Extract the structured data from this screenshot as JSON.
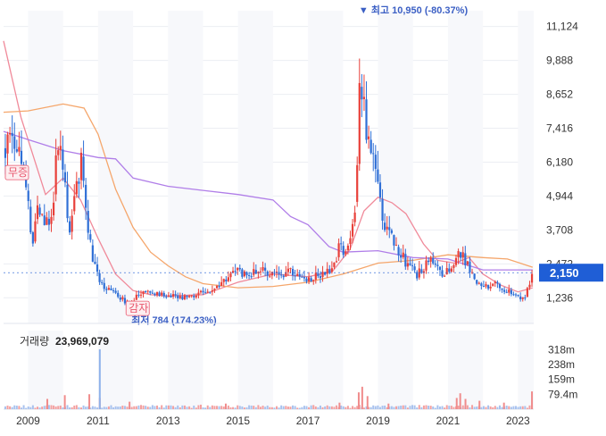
{
  "chart_data": [
    {
      "type": "candlestick",
      "title": "",
      "x_ticks": [
        "2009",
        "2011",
        "2013",
        "2015",
        "2017",
        "2019",
        "2021",
        "2023"
      ],
      "x_range": [
        2008.3,
        2023.45
      ],
      "y_ticks": [
        "11,124",
        "9,888",
        "8,652",
        "7,416",
        "6,180",
        "4,944",
        "3,708",
        "2,472",
        "1,236"
      ],
      "ylim": [
        300,
        11700
      ],
      "current_price": 2150,
      "current_price_label": "2,150",
      "high_marker": {
        "text": "▼ 최고 10,950 (-80.37%)",
        "x": 2018.55,
        "value": 10950
      },
      "low_marker": {
        "text": "최저 784 (174.23%)",
        "x": 2011.75,
        "value": 784
      },
      "event_tags": [
        {
          "text": "무증",
          "x": 2008.35,
          "value": 5800,
          "color": "#e8556d"
        },
        {
          "text": "감자",
          "x": 2011.8,
          "value": 850,
          "color": "#e8556d"
        }
      ],
      "colors": {
        "up": "#e8403a",
        "down": "#2f6fd6",
        "current_price_box": "#1f5ed6"
      },
      "price_path": [
        [
          2008.35,
          6700
        ],
        [
          2008.55,
          7300
        ],
        [
          2008.75,
          6500
        ],
        [
          2008.95,
          5200
        ],
        [
          2009.1,
          3200
        ],
        [
          2009.3,
          4600
        ],
        [
          2009.5,
          3900
        ],
        [
          2009.7,
          4500
        ],
        [
          2009.85,
          6900
        ],
        [
          2010.0,
          6000
        ],
        [
          2010.2,
          3500
        ],
        [
          2010.35,
          5000
        ],
        [
          2010.55,
          6500
        ],
        [
          2010.7,
          3900
        ],
        [
          2010.85,
          2700
        ],
        [
          2011.0,
          2000
        ],
        [
          2011.2,
          1600
        ],
        [
          2011.4,
          1450
        ],
        [
          2011.6,
          1300
        ],
        [
          2011.8,
          1050
        ],
        [
          2012.0,
          1150
        ],
        [
          2012.2,
          1400
        ],
        [
          2012.5,
          1500
        ],
        [
          2012.8,
          1350
        ],
        [
          2013.0,
          1300
        ],
        [
          2013.3,
          1250
        ],
        [
          2013.6,
          1300
        ],
        [
          2013.8,
          1350
        ],
        [
          2014.0,
          1400
        ],
        [
          2014.3,
          1500
        ],
        [
          2014.6,
          1800
        ],
        [
          2014.8,
          2100
        ],
        [
          2015.0,
          2200
        ],
        [
          2015.3,
          2100
        ],
        [
          2015.6,
          2300
        ],
        [
          2015.9,
          2050
        ],
        [
          2016.2,
          2100
        ],
        [
          2016.5,
          2250
        ],
        [
          2016.8,
          2000
        ],
        [
          2017.0,
          1950
        ],
        [
          2017.3,
          2050
        ],
        [
          2017.6,
          2200
        ],
        [
          2017.8,
          2700
        ],
        [
          2017.95,
          3300
        ],
        [
          2018.05,
          2600
        ],
        [
          2018.2,
          3400
        ],
        [
          2018.35,
          4300
        ],
        [
          2018.45,
          8200
        ],
        [
          2018.55,
          9300
        ],
        [
          2018.7,
          7000
        ],
        [
          2018.85,
          6200
        ],
        [
          2019.0,
          5200
        ],
        [
          2019.15,
          4000
        ],
        [
          2019.3,
          3600
        ],
        [
          2019.5,
          3100
        ],
        [
          2019.7,
          2700
        ],
        [
          2019.9,
          2400
        ],
        [
          2020.1,
          2000
        ],
        [
          2020.3,
          2350
        ],
        [
          2020.5,
          2800
        ],
        [
          2020.7,
          2300
        ],
        [
          2020.9,
          2100
        ],
        [
          2021.1,
          2500
        ],
        [
          2021.3,
          2900
        ],
        [
          2021.5,
          2600
        ],
        [
          2021.6,
          2300
        ],
        [
          2021.75,
          1900
        ],
        [
          2021.9,
          1700
        ],
        [
          2022.1,
          1650
        ],
        [
          2022.3,
          1750
        ],
        [
          2022.5,
          1600
        ],
        [
          2022.7,
          1450
        ],
        [
          2022.9,
          1350
        ],
        [
          2023.05,
          1200
        ],
        [
          2023.2,
          1300
        ],
        [
          2023.3,
          1700
        ],
        [
          2023.4,
          2150
        ]
      ],
      "ma_series": [
        {
          "color": "#f08a9a",
          "points": [
            [
              2008.3,
              10600
            ],
            [
              2008.8,
              7800
            ],
            [
              2009.5,
              5000
            ],
            [
              2010.0,
              5600
            ],
            [
              2010.5,
              4800
            ],
            [
              2011.0,
              3400
            ],
            [
              2011.5,
              2100
            ],
            [
              2012.0,
              1500
            ],
            [
              2012.5,
              1350
            ],
            [
              2013.0,
              1300
            ],
            [
              2014.0,
              1350
            ],
            [
              2015.0,
              1800
            ],
            [
              2016.0,
              2100
            ],
            [
              2017.0,
              2000
            ],
            [
              2017.7,
              2200
            ],
            [
              2018.2,
              3000
            ],
            [
              2018.6,
              4400
            ],
            [
              2019.0,
              4900
            ],
            [
              2019.4,
              4700
            ],
            [
              2019.8,
              4300
            ],
            [
              2020.3,
              3200
            ],
            [
              2020.7,
              2600
            ],
            [
              2021.2,
              2500
            ],
            [
              2021.6,
              2700
            ],
            [
              2022.0,
              2100
            ],
            [
              2022.5,
              1700
            ],
            [
              2023.0,
              1450
            ],
            [
              2023.42,
              1600
            ]
          ]
        },
        {
          "color": "#f5a66b",
          "points": [
            [
              2008.3,
              8000
            ],
            [
              2009.0,
              8050
            ],
            [
              2010.0,
              8300
            ],
            [
              2010.6,
              8150
            ],
            [
              2011.0,
              7200
            ],
            [
              2011.5,
              5200
            ],
            [
              2012.0,
              3800
            ],
            [
              2012.5,
              2900
            ],
            [
              2013.0,
              2400
            ],
            [
              2013.5,
              2000
            ],
            [
              2014.0,
              1750
            ],
            [
              2015.0,
              1600
            ],
            [
              2016.0,
              1650
            ],
            [
              2017.0,
              1800
            ],
            [
              2018.0,
              2100
            ],
            [
              2019.0,
              2500
            ],
            [
              2020.0,
              2600
            ],
            [
              2021.0,
              2800
            ],
            [
              2022.0,
              2700
            ],
            [
              2022.7,
              2650
            ],
            [
              2023.42,
              2350
            ]
          ]
        },
        {
          "color": "#b07ee8",
          "points": [
            [
              2008.3,
              7300
            ],
            [
              2009.0,
              7000
            ],
            [
              2010.0,
              6600
            ],
            [
              2011.0,
              6350
            ],
            [
              2011.5,
              6300
            ],
            [
              2012.0,
              5600
            ],
            [
              2013.0,
              5300
            ],
            [
              2014.0,
              5150
            ],
            [
              2015.0,
              5000
            ],
            [
              2016.0,
              4800
            ],
            [
              2016.5,
              4200
            ],
            [
              2017.0,
              3900
            ],
            [
              2017.6,
              3100
            ],
            [
              2018.0,
              2900
            ],
            [
              2019.0,
              2950
            ],
            [
              2020.0,
              2700
            ],
            [
              2021.0,
              2650
            ],
            [
              2022.0,
              2250
            ],
            [
              2023.42,
              2250
            ]
          ]
        }
      ]
    },
    {
      "type": "bar",
      "title": "거래량",
      "latest_volume_label": "23,969,079",
      "y_ticks": [
        "318m",
        "238m",
        "159m",
        "79.4m"
      ],
      "ylim": [
        0,
        420
      ],
      "units": "m",
      "spikes": [
        {
          "x": 2009.55,
          "value": 55
        },
        {
          "x": 2010.05,
          "value": 75
        },
        {
          "x": 2010.75,
          "value": 80
        },
        {
          "x": 2011.05,
          "value": 60
        },
        {
          "x": 2011.05,
          "value": 320
        },
        {
          "x": 2011.9,
          "value": 40
        },
        {
          "x": 2014.65,
          "value": 30
        },
        {
          "x": 2017.9,
          "value": 35
        },
        {
          "x": 2018.45,
          "value": 90
        },
        {
          "x": 2018.55,
          "value": 120
        },
        {
          "x": 2018.7,
          "value": 70
        },
        {
          "x": 2019.3,
          "value": 30
        },
        {
          "x": 2021.25,
          "value": 60
        },
        {
          "x": 2021.35,
          "value": 85
        },
        {
          "x": 2021.5,
          "value": 55
        },
        {
          "x": 2021.9,
          "value": 45
        },
        {
          "x": 2022.6,
          "value": 35
        },
        {
          "x": 2023.4,
          "value": 95
        }
      ]
    }
  ]
}
